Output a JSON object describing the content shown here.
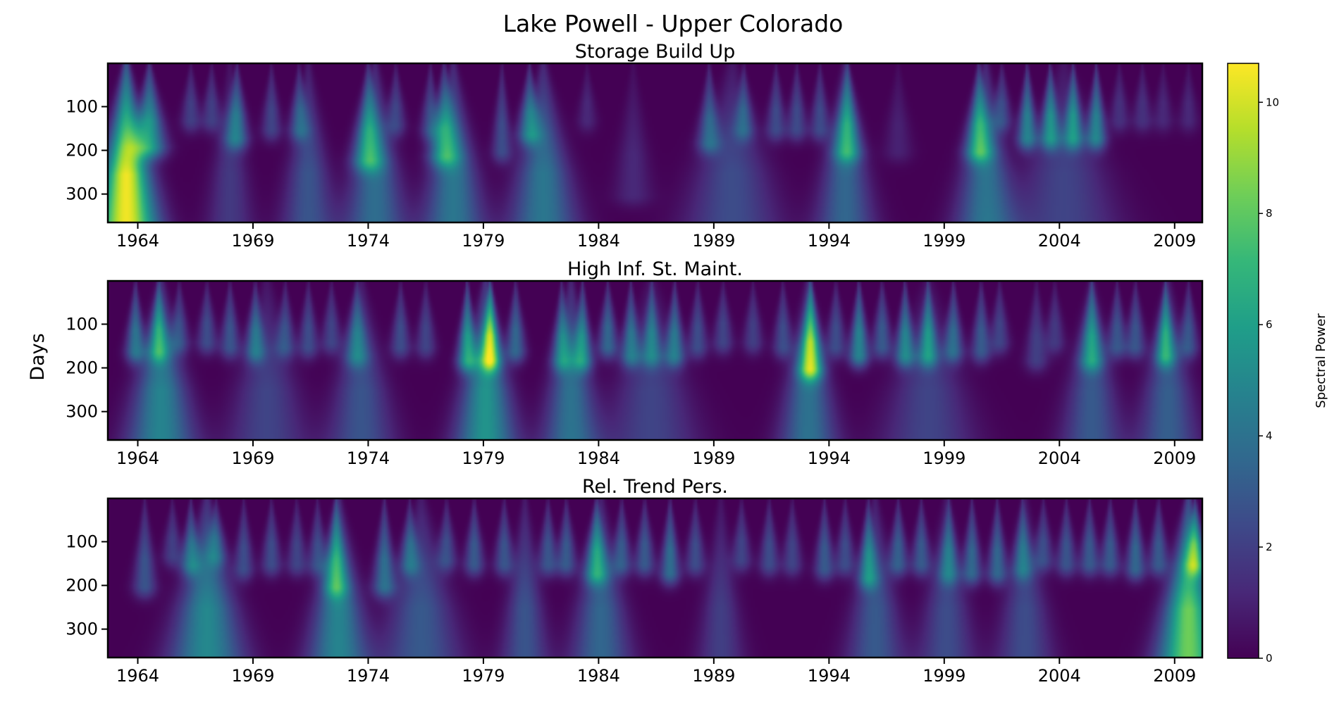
{
  "figure": {
    "title": "Lake Powell - Upper Colorado",
    "ylabel": "Days"
  },
  "colorbar": {
    "label": "Spectral Power",
    "ticks": [
      0,
      2,
      4,
      6,
      8,
      10
    ],
    "range": [
      0,
      10.7
    ],
    "colormap": "viridis",
    "colors": [
      "#440154",
      "#482878",
      "#3e4989",
      "#31688e",
      "#26828e",
      "#1f9e89",
      "#35b779",
      "#6ece58",
      "#b5de2b",
      "#fde725"
    ]
  },
  "chart_data": [
    {
      "type": "heatmap",
      "title": "Storage Build Up",
      "xlabel": "",
      "ylabel": "Days",
      "xlim": [
        1962.7,
        2010.2
      ],
      "ylim": [
        365,
        1
      ],
      "xticks": [
        1964,
        1969,
        1974,
        1979,
        1984,
        1989,
        1994,
        1999,
        2004,
        2009
      ],
      "yticks": [
        100,
        200,
        300
      ],
      "zlim": [
        0,
        10.7
      ],
      "blobs": [
        {
          "year": 1963.5,
          "power": 10.5,
          "max_period": 365,
          "spread": 0.9
        },
        {
          "year": 1964.5,
          "power": 5.5,
          "max_period": 190,
          "spread": 0.5
        },
        {
          "year": 1966.3,
          "power": 2.0,
          "max_period": 130,
          "spread": 0.3
        },
        {
          "year": 1967.2,
          "power": 2.0,
          "max_period": 130,
          "spread": 0.3
        },
        {
          "year": 1968.3,
          "power": 3.8,
          "max_period": 170,
          "spread": 0.35
        },
        {
          "year": 1968.0,
          "power": 1.8,
          "max_period": 360,
          "spread": 0.7
        },
        {
          "year": 1969.8,
          "power": 2.2,
          "max_period": 150,
          "spread": 0.3
        },
        {
          "year": 1971.0,
          "power": 2.8,
          "max_period": 150,
          "spread": 0.3
        },
        {
          "year": 1971.4,
          "power": 2.8,
          "max_period": 360,
          "spread": 0.8
        },
        {
          "year": 1974.0,
          "power": 4.5,
          "max_period": 220,
          "spread": 0.45
        },
        {
          "year": 1974.3,
          "power": 3.8,
          "max_period": 360,
          "spread": 0.9
        },
        {
          "year": 1975.2,
          "power": 2.2,
          "max_period": 140,
          "spread": 0.3
        },
        {
          "year": 1976.7,
          "power": 2.5,
          "max_period": 150,
          "spread": 0.3
        },
        {
          "year": 1977.3,
          "power": 4.5,
          "max_period": 210,
          "spread": 0.45
        },
        {
          "year": 1977.7,
          "power": 4.2,
          "max_period": 360,
          "spread": 0.9
        },
        {
          "year": 1979.8,
          "power": 2.5,
          "max_period": 200,
          "spread": 0.3
        },
        {
          "year": 1981.0,
          "power": 4.0,
          "max_period": 160,
          "spread": 0.35
        },
        {
          "year": 1981.6,
          "power": 4.2,
          "max_period": 360,
          "spread": 1.0
        },
        {
          "year": 1983.5,
          "power": 1.2,
          "max_period": 130,
          "spread": 0.3
        },
        {
          "year": 1985.5,
          "power": 1.2,
          "max_period": 300,
          "spread": 0.6
        },
        {
          "year": 1988.8,
          "power": 3.2,
          "max_period": 180,
          "spread": 0.35
        },
        {
          "year": 1989.8,
          "power": 2.5,
          "max_period": 360,
          "spread": 1.4
        },
        {
          "year": 1990.3,
          "power": 2.6,
          "max_period": 150,
          "spread": 0.3
        },
        {
          "year": 1991.7,
          "power": 2.4,
          "max_period": 150,
          "spread": 0.3
        },
        {
          "year": 1992.6,
          "power": 2.4,
          "max_period": 150,
          "spread": 0.3
        },
        {
          "year": 1993.6,
          "power": 2.4,
          "max_period": 150,
          "spread": 0.3
        },
        {
          "year": 1994.8,
          "power": 4.5,
          "max_period": 200,
          "spread": 0.4
        },
        {
          "year": 1994.7,
          "power": 3.5,
          "max_period": 360,
          "spread": 0.85
        },
        {
          "year": 1997.0,
          "power": 1.0,
          "max_period": 200,
          "spread": 0.45
        },
        {
          "year": 2000.5,
          "power": 5.0,
          "max_period": 200,
          "spread": 0.4
        },
        {
          "year": 2000.8,
          "power": 4.0,
          "max_period": 360,
          "spread": 0.9
        },
        {
          "year": 2001.5,
          "power": 2.4,
          "max_period": 130,
          "spread": 0.3
        },
        {
          "year": 2002.6,
          "power": 4.5,
          "max_period": 170,
          "spread": 0.3
        },
        {
          "year": 2003.6,
          "power": 4.5,
          "max_period": 170,
          "spread": 0.3
        },
        {
          "year": 2004.6,
          "power": 4.5,
          "max_period": 170,
          "spread": 0.3
        },
        {
          "year": 2005.6,
          "power": 4.5,
          "max_period": 170,
          "spread": 0.3
        },
        {
          "year": 2004.2,
          "power": 2.2,
          "max_period": 360,
          "spread": 1.6
        },
        {
          "year": 2006.6,
          "power": 1.5,
          "max_period": 130,
          "spread": 0.3
        },
        {
          "year": 2007.6,
          "power": 1.5,
          "max_period": 130,
          "spread": 0.3
        },
        {
          "year": 2008.5,
          "power": 1.2,
          "max_period": 130,
          "spread": 0.3
        },
        {
          "year": 2009.6,
          "power": 1.2,
          "max_period": 130,
          "spread": 0.3
        }
      ]
    },
    {
      "type": "heatmap",
      "title": "High Inf. St. Maint.",
      "xlabel": "",
      "ylabel": "Days",
      "xlim": [
        1962.7,
        2010.2
      ],
      "ylim": [
        365,
        1
      ],
      "xticks": [
        1964,
        1969,
        1974,
        1979,
        1984,
        1989,
        1994,
        1999,
        2004,
        2009
      ],
      "yticks": [
        100,
        200,
        300
      ],
      "zlim": [
        0,
        10.7
      ],
      "blobs": [
        {
          "year": 1963.9,
          "power": 4.0,
          "max_period": 160,
          "spread": 0.3
        },
        {
          "year": 1964.9,
          "power": 4.2,
          "max_period": 160,
          "spread": 0.3
        },
        {
          "year": 1965.0,
          "power": 4.8,
          "max_period": 360,
          "spread": 1.0
        },
        {
          "year": 1965.8,
          "power": 2.5,
          "max_period": 140,
          "spread": 0.3
        },
        {
          "year": 1967.0,
          "power": 2.5,
          "max_period": 140,
          "spread": 0.3
        },
        {
          "year": 1968.0,
          "power": 2.8,
          "max_period": 150,
          "spread": 0.3
        },
        {
          "year": 1969.1,
          "power": 3.5,
          "max_period": 160,
          "spread": 0.3
        },
        {
          "year": 1969.6,
          "power": 2.2,
          "max_period": 360,
          "spread": 1.2
        },
        {
          "year": 1970.4,
          "power": 2.5,
          "max_period": 150,
          "spread": 0.3
        },
        {
          "year": 1971.4,
          "power": 2.5,
          "max_period": 150,
          "spread": 0.3
        },
        {
          "year": 1972.4,
          "power": 2.2,
          "max_period": 140,
          "spread": 0.3
        },
        {
          "year": 1973.5,
          "power": 3.2,
          "max_period": 170,
          "spread": 0.35
        },
        {
          "year": 1973.7,
          "power": 2.8,
          "max_period": 360,
          "spread": 1.0
        },
        {
          "year": 1975.4,
          "power": 2.5,
          "max_period": 150,
          "spread": 0.3
        },
        {
          "year": 1976.5,
          "power": 2.2,
          "max_period": 150,
          "spread": 0.3
        },
        {
          "year": 1978.3,
          "power": 5.5,
          "max_period": 180,
          "spread": 0.3
        },
        {
          "year": 1979.3,
          "power": 7.0,
          "max_period": 180,
          "spread": 0.3
        },
        {
          "year": 1979.1,
          "power": 5.5,
          "max_period": 360,
          "spread": 0.9
        },
        {
          "year": 1980.4,
          "power": 3.5,
          "max_period": 160,
          "spread": 0.3
        },
        {
          "year": 1982.4,
          "power": 3.8,
          "max_period": 180,
          "spread": 0.3
        },
        {
          "year": 1983.3,
          "power": 4.5,
          "max_period": 180,
          "spread": 0.3
        },
        {
          "year": 1982.8,
          "power": 4.0,
          "max_period": 360,
          "spread": 0.85
        },
        {
          "year": 1984.4,
          "power": 3.5,
          "max_period": 150,
          "spread": 0.3
        },
        {
          "year": 1985.4,
          "power": 3.8,
          "max_period": 170,
          "spread": 0.3
        },
        {
          "year": 1986.3,
          "power": 3.5,
          "max_period": 170,
          "spread": 0.3
        },
        {
          "year": 1987.3,
          "power": 4.0,
          "max_period": 170,
          "spread": 0.3
        },
        {
          "year": 1986.3,
          "power": 2.2,
          "max_period": 360,
          "spread": 1.4
        },
        {
          "year": 1988.3,
          "power": 2.5,
          "max_period": 150,
          "spread": 0.3
        },
        {
          "year": 1989.4,
          "power": 2.2,
          "max_period": 140,
          "spread": 0.3
        },
        {
          "year": 1990.7,
          "power": 2.0,
          "max_period": 140,
          "spread": 0.3
        },
        {
          "year": 1992.0,
          "power": 2.5,
          "max_period": 150,
          "spread": 0.3
        },
        {
          "year": 1993.2,
          "power": 7.0,
          "max_period": 200,
          "spread": 0.35
        },
        {
          "year": 1993.1,
          "power": 4.0,
          "max_period": 360,
          "spread": 0.85
        },
        {
          "year": 1994.3,
          "power": 2.5,
          "max_period": 150,
          "spread": 0.3
        },
        {
          "year": 1995.3,
          "power": 4.8,
          "max_period": 170,
          "spread": 0.3
        },
        {
          "year": 1996.3,
          "power": 3.0,
          "max_period": 150,
          "spread": 0.3
        },
        {
          "year": 1997.3,
          "power": 4.5,
          "max_period": 170,
          "spread": 0.3
        },
        {
          "year": 1998.3,
          "power": 4.5,
          "max_period": 170,
          "spread": 0.3
        },
        {
          "year": 1998.3,
          "power": 2.2,
          "max_period": 360,
          "spread": 1.4
        },
        {
          "year": 1999.4,
          "power": 3.5,
          "max_period": 160,
          "spread": 0.3
        },
        {
          "year": 2000.6,
          "power": 3.0,
          "max_period": 160,
          "spread": 0.3
        },
        {
          "year": 2001.4,
          "power": 2.2,
          "max_period": 140,
          "spread": 0.3
        },
        {
          "year": 2003.0,
          "power": 2.0,
          "max_period": 180,
          "spread": 0.35
        },
        {
          "year": 2003.8,
          "power": 1.8,
          "max_period": 140,
          "spread": 0.3
        },
        {
          "year": 2005.4,
          "power": 4.2,
          "max_period": 180,
          "spread": 0.35
        },
        {
          "year": 2005.4,
          "power": 3.0,
          "max_period": 360,
          "spread": 0.9
        },
        {
          "year": 2006.5,
          "power": 2.8,
          "max_period": 150,
          "spread": 0.3
        },
        {
          "year": 2007.3,
          "power": 2.8,
          "max_period": 150,
          "spread": 0.3
        },
        {
          "year": 2008.6,
          "power": 4.8,
          "max_period": 170,
          "spread": 0.3
        },
        {
          "year": 2008.7,
          "power": 3.2,
          "max_period": 360,
          "spread": 0.9
        },
        {
          "year": 2009.6,
          "power": 2.8,
          "max_period": 150,
          "spread": 0.3
        }
      ]
    },
    {
      "type": "heatmap",
      "title": "Rel. Trend Pers.",
      "xlabel": "",
      "ylabel": "Days",
      "xlim": [
        1962.7,
        2010.2
      ],
      "ylim": [
        365,
        1
      ],
      "xticks": [
        1964,
        1969,
        1974,
        1979,
        1984,
        1989,
        1994,
        1999,
        2004,
        2009
      ],
      "yticks": [
        100,
        200,
        300
      ],
      "zlim": [
        0,
        10.7
      ],
      "blobs": [
        {
          "year": 1964.3,
          "power": 2.8,
          "max_period": 200,
          "spread": 0.35
        },
        {
          "year": 1965.5,
          "power": 2.0,
          "max_period": 130,
          "spread": 0.3
        },
        {
          "year": 1966.3,
          "power": 3.5,
          "max_period": 150,
          "spread": 0.3
        },
        {
          "year": 1967.0,
          "power": 5.0,
          "max_period": 360,
          "spread": 1.1
        },
        {
          "year": 1967.4,
          "power": 2.5,
          "max_period": 130,
          "spread": 0.3
        },
        {
          "year": 1968.6,
          "power": 2.5,
          "max_period": 160,
          "spread": 0.3
        },
        {
          "year": 1969.8,
          "power": 2.5,
          "max_period": 150,
          "spread": 0.3
        },
        {
          "year": 1970.9,
          "power": 2.2,
          "max_period": 150,
          "spread": 0.3
        },
        {
          "year": 1971.8,
          "power": 2.5,
          "max_period": 150,
          "spread": 0.3
        },
        {
          "year": 1972.6,
          "power": 4.0,
          "max_period": 200,
          "spread": 0.35
        },
        {
          "year": 1972.7,
          "power": 4.8,
          "max_period": 360,
          "spread": 0.9
        },
        {
          "year": 1974.7,
          "power": 3.8,
          "max_period": 200,
          "spread": 0.35
        },
        {
          "year": 1975.8,
          "power": 3.0,
          "max_period": 150,
          "spread": 0.3
        },
        {
          "year": 1976.3,
          "power": 3.0,
          "max_period": 360,
          "spread": 1.2
        },
        {
          "year": 1977.4,
          "power": 2.5,
          "max_period": 140,
          "spread": 0.3
        },
        {
          "year": 1978.6,
          "power": 3.0,
          "max_period": 150,
          "spread": 0.3
        },
        {
          "year": 1979.9,
          "power": 2.8,
          "max_period": 150,
          "spread": 0.3
        },
        {
          "year": 1980.8,
          "power": 2.8,
          "max_period": 360,
          "spread": 0.7
        },
        {
          "year": 1981.8,
          "power": 2.8,
          "max_period": 150,
          "spread": 0.3
        },
        {
          "year": 1982.6,
          "power": 3.0,
          "max_period": 150,
          "spread": 0.3
        },
        {
          "year": 1983.9,
          "power": 4.5,
          "max_period": 170,
          "spread": 0.35
        },
        {
          "year": 1984.1,
          "power": 3.5,
          "max_period": 360,
          "spread": 0.9
        },
        {
          "year": 1985.0,
          "power": 3.0,
          "max_period": 150,
          "spread": 0.3
        },
        {
          "year": 1986.0,
          "power": 3.0,
          "max_period": 150,
          "spread": 0.3
        },
        {
          "year": 1987.1,
          "power": 3.8,
          "max_period": 170,
          "spread": 0.3
        },
        {
          "year": 1988.2,
          "power": 2.5,
          "max_period": 150,
          "spread": 0.3
        },
        {
          "year": 1989.3,
          "power": 2.0,
          "max_period": 360,
          "spread": 0.7
        },
        {
          "year": 1990.2,
          "power": 2.2,
          "max_period": 140,
          "spread": 0.3
        },
        {
          "year": 1991.4,
          "power": 2.5,
          "max_period": 150,
          "spread": 0.3
        },
        {
          "year": 1992.4,
          "power": 2.2,
          "max_period": 150,
          "spread": 0.3
        },
        {
          "year": 1993.8,
          "power": 3.0,
          "max_period": 160,
          "spread": 0.3
        },
        {
          "year": 1994.7,
          "power": 2.5,
          "max_period": 150,
          "spread": 0.3
        },
        {
          "year": 1995.7,
          "power": 4.0,
          "max_period": 180,
          "spread": 0.3
        },
        {
          "year": 1996.0,
          "power": 3.0,
          "max_period": 360,
          "spread": 0.85
        },
        {
          "year": 1997.0,
          "power": 3.2,
          "max_period": 150,
          "spread": 0.3
        },
        {
          "year": 1998.0,
          "power": 3.0,
          "max_period": 150,
          "spread": 0.3
        },
        {
          "year": 1999.2,
          "power": 3.2,
          "max_period": 170,
          "spread": 0.3
        },
        {
          "year": 1999.1,
          "power": 2.5,
          "max_period": 360,
          "spread": 0.85
        },
        {
          "year": 2000.2,
          "power": 3.5,
          "max_period": 170,
          "spread": 0.3
        },
        {
          "year": 2001.3,
          "power": 3.5,
          "max_period": 170,
          "spread": 0.3
        },
        {
          "year": 2002.4,
          "power": 3.0,
          "max_period": 160,
          "spread": 0.3
        },
        {
          "year": 2002.5,
          "power": 2.5,
          "max_period": 360,
          "spread": 0.85
        },
        {
          "year": 2003.3,
          "power": 2.5,
          "max_period": 140,
          "spread": 0.3
        },
        {
          "year": 2004.3,
          "power": 2.8,
          "max_period": 150,
          "spread": 0.3
        },
        {
          "year": 2005.3,
          "power": 3.0,
          "max_period": 150,
          "spread": 0.3
        },
        {
          "year": 2006.2,
          "power": 3.0,
          "max_period": 150,
          "spread": 0.3
        },
        {
          "year": 2007.3,
          "power": 3.5,
          "max_period": 160,
          "spread": 0.3
        },
        {
          "year": 2008.3,
          "power": 3.0,
          "max_period": 150,
          "spread": 0.3
        },
        {
          "year": 2009.9,
          "power": 5.0,
          "max_period": 150,
          "spread": 0.3
        },
        {
          "year": 2009.6,
          "power": 8.3,
          "max_period": 365,
          "spread": 0.9
        }
      ]
    }
  ]
}
